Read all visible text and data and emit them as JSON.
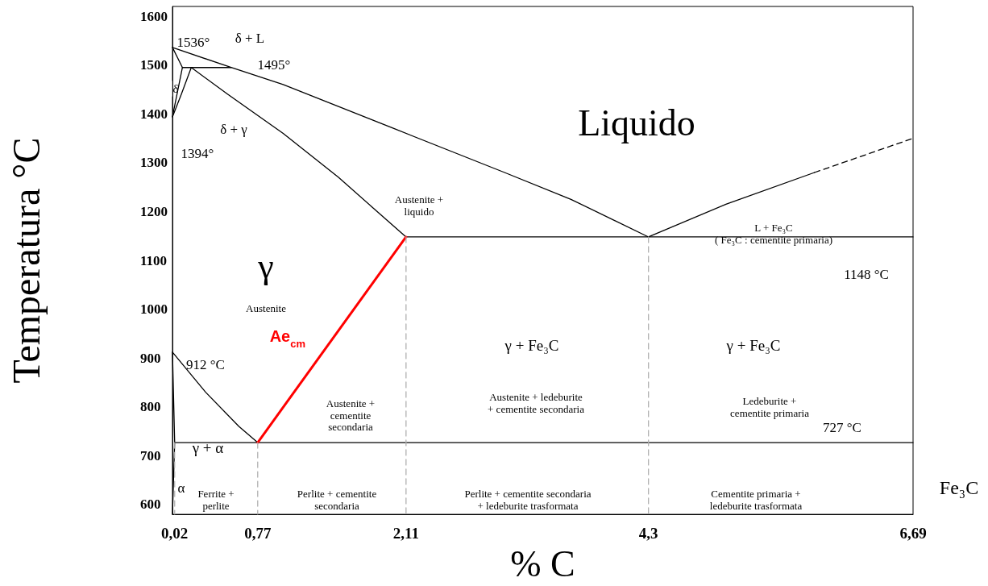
{
  "chart_data": {
    "type": "line",
    "xlabel": "% C",
    "ylabel": "Temperatura °C",
    "xlim": [
      0,
      6.69
    ],
    "ylim": [
      580,
      1620
    ],
    "xticks": [
      {
        "value": 0.02,
        "label": "0,02"
      },
      {
        "value": 0.77,
        "label": "0,77"
      },
      {
        "value": 2.11,
        "label": "2,11"
      },
      {
        "value": 4.3,
        "label": "4,3"
      },
      {
        "value": 6.69,
        "label": "6,69"
      }
    ],
    "yticks": [
      600,
      700,
      800,
      900,
      1000,
      1100,
      1200,
      1300,
      1400,
      1500,
      1600
    ],
    "grid": false,
    "marker": "none",
    "series": [
      {
        "color": "#000000",
        "x": [
          0,
          0.53,
          1.0,
          2.0,
          3.0,
          3.6,
          4.3
        ],
        "values": [
          1536,
          1495,
          1460,
          1370,
          1280,
          1225,
          1148
        ]
      },
      {
        "color": "#000000",
        "x": [
          0.17,
          0.5,
          1.0,
          1.5,
          1.8,
          2.11
        ],
        "values": [
          1495,
          1440,
          1360,
          1270,
          1210,
          1148
        ]
      },
      {
        "color": "#000000",
        "x": [
          0.09,
          0.53
        ],
        "values": [
          1495,
          1495
        ]
      },
      {
        "color": "#000000",
        "x": [
          0,
          0.09,
          0
        ],
        "values": [
          1536,
          1495,
          1394
        ]
      },
      {
        "color": "#000000",
        "x": [
          0.17,
          0.08,
          0
        ],
        "values": [
          1495,
          1440,
          1394
        ]
      },
      {
        "color": "#000000",
        "x": [
          2.11,
          6.69
        ],
        "values": [
          1148,
          1148
        ]
      },
      {
        "color": "#000000",
        "x": [
          4.3,
          5.0,
          5.8
        ],
        "values": [
          1148,
          1215,
          1280
        ]
      },
      {
        "color": "#000000",
        "line_style": "dashed",
        "x": [
          5.8,
          6.69
        ],
        "values": [
          1280,
          1350
        ]
      },
      {
        "color": "#000000",
        "x": [
          0,
          0.3,
          0.6,
          0.77
        ],
        "values": [
          912,
          830,
          760,
          727
        ]
      },
      {
        "color": "#000000",
        "x": [
          0,
          0.02,
          0
        ],
        "values": [
          912,
          727,
          580
        ]
      },
      {
        "color": "#000000",
        "x": [
          0.02,
          6.69
        ],
        "values": [
          727,
          727
        ]
      },
      {
        "name": "Ae$_{cm}$",
        "color": "#ff0000",
        "x": [
          0.77,
          2.11
        ],
        "values": [
          727,
          1148
        ]
      },
      {
        "color": "#b0b0b0",
        "line_style": "dashed",
        "x": [
          0.02,
          0.02
        ],
        "values": [
          727,
          580
        ]
      },
      {
        "color": "#b0b0b0",
        "line_style": "dashed",
        "x": [
          0.77,
          0.77
        ],
        "values": [
          727,
          580
        ]
      },
      {
        "color": "#b0b0b0",
        "line_style": "dashed",
        "x": [
          2.11,
          2.11
        ],
        "values": [
          1148,
          580
        ]
      },
      {
        "color": "#b0b0b0",
        "line_style": "dashed",
        "x": [
          4.3,
          4.3
        ],
        "values": [
          1148,
          580
        ]
      }
    ],
    "annotations": [
      "1536°",
      "δ + L",
      "1495°",
      "δ",
      "δ + γ",
      "1394°",
      "Liquido",
      "Austenite +\nliquido",
      "L + Fe₃C\n( Fe₃C : cementite primaria)",
      "1148 °C",
      "γ",
      "Austenite",
      "912 °C",
      "γ + Fe₃C",
      "γ + Fe₃C",
      "Austenite +\ncementite\nsecondaria",
      "Austenite + ledeburite\n+ cementite secondaria",
      "Ledeburite +\ncementite primaria",
      "727 °C",
      "γ + α",
      "α",
      "Ferrite +\nperlite",
      "Perlite + cementite\nsecondaria",
      "Perlite + cementite secondaria\n+ ledeburite trasformata",
      "Cementite primaria +\nledeburite trasformata",
      "Fe₃C"
    ]
  }
}
